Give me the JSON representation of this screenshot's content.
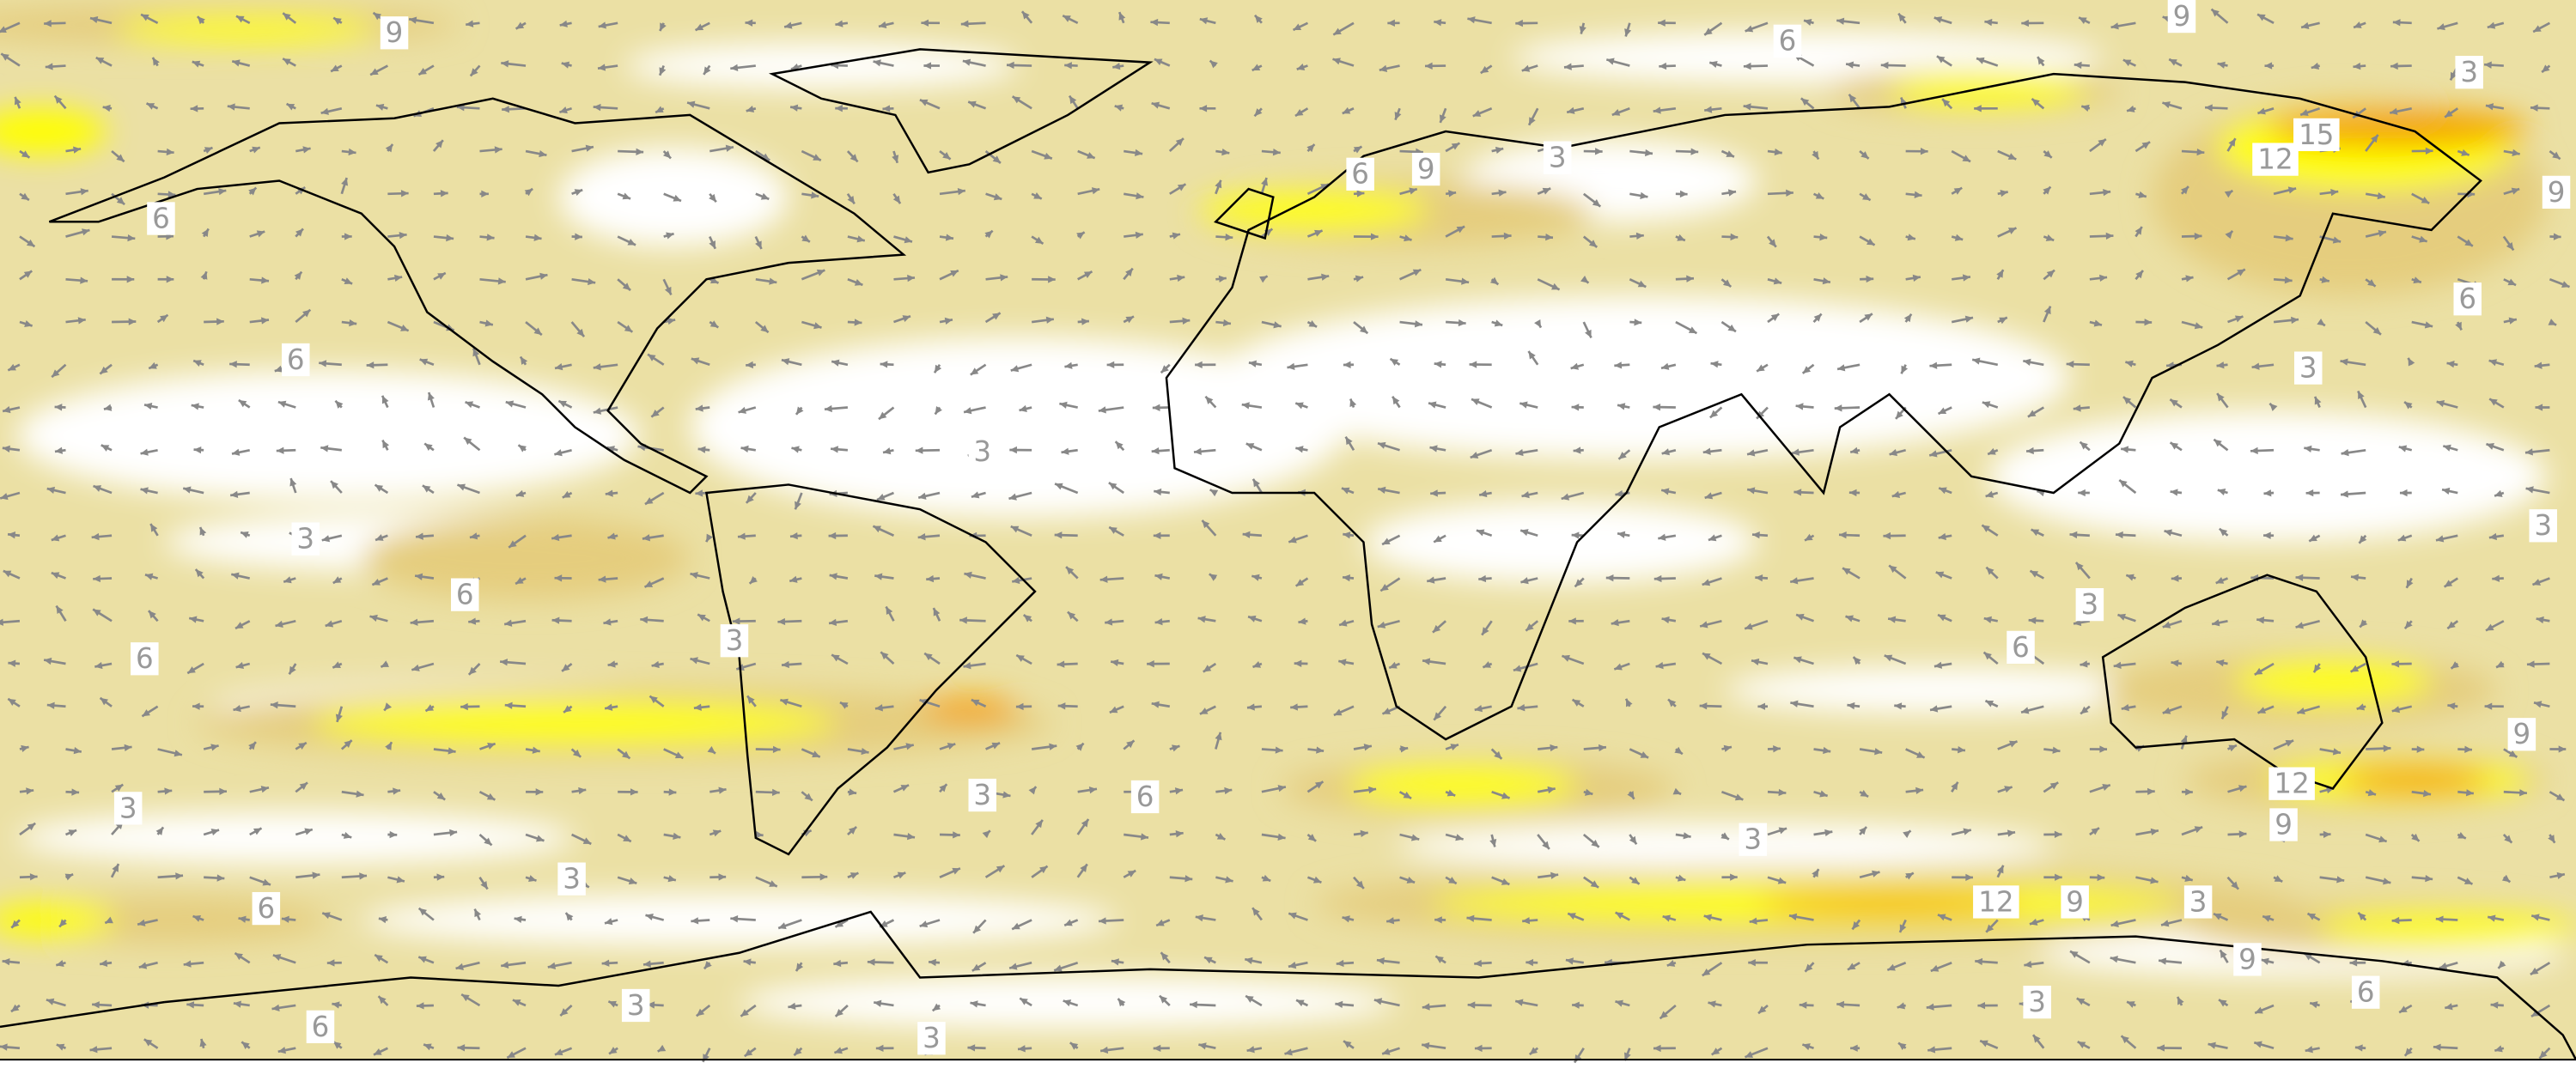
{
  "contour_labels": [
    "9",
    "6",
    "9",
    "3",
    "15",
    "12",
    "9",
    "6",
    "3",
    "6",
    "6",
    "3",
    "3",
    "6",
    "3",
    "6",
    "3",
    "3",
    "6",
    "9",
    "12",
    "9",
    "3",
    "3",
    "6",
    "3",
    "3",
    "6",
    "12",
    "9",
    "3",
    "9",
    "3",
    "6",
    "3",
    "6",
    "6",
    "9",
    "3",
    "3"
  ]
}
